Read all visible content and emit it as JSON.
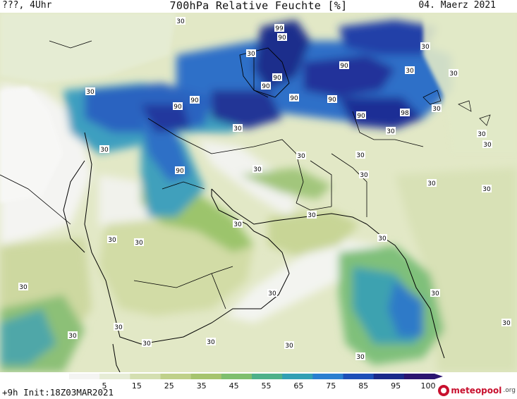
{
  "header": {
    "left": "???, 4Uhr",
    "title": "700hPa Relative Feuchte [%]",
    "date": "04. Maerz 2021"
  },
  "footer": {
    "run_info": "+9h Init:18Z03MAR2021",
    "logo_text": "meteopool",
    "logo_suffix": ".org"
  },
  "colorbar": {
    "ticks": [
      "5",
      "15",
      "25",
      "35",
      "45",
      "55",
      "65",
      "75",
      "85",
      "95",
      "100"
    ],
    "colors": [
      "#f4f4f2",
      "#e6ecd6",
      "#d4dfb1",
      "#bfd08a",
      "#a6c46e",
      "#7fbf6e",
      "#4fb18a",
      "#32a0b4",
      "#2a7fd0",
      "#1d50b8",
      "#1a2a8a",
      "#2b1570"
    ]
  },
  "map_labels": {
    "l1": "90",
    "l2": "30",
    "l3": "99",
    "l4": "90",
    "l5": "30",
    "l6": "90",
    "l7": "30",
    "l8": "90",
    "l9": "30",
    "l10": "90",
    "l11": "90",
    "l12": "90",
    "l13": "90",
    "l14": "90",
    "l15": "30",
    "l16": "90",
    "l17": "90",
    "l18": "90",
    "l19": "98",
    "l20": "30",
    "l21": "30",
    "l22": "30",
    "l23": "30",
    "l24": "30",
    "l25": "30",
    "l26": "30",
    "l27": "30",
    "l28": "90",
    "l29": "30",
    "l30": "30",
    "l31": "30",
    "l32": "30",
    "l33": "30",
    "l34": "30",
    "l35": "30",
    "l36": "30",
    "l37": "30",
    "l38": "30",
    "l39": "30",
    "l40": "30",
    "l41": "30",
    "l42": "30",
    "l43": "30",
    "l44": "30",
    "l45": "30",
    "l46": "30",
    "l47": "30",
    "l48": "30",
    "l49": "30"
  }
}
